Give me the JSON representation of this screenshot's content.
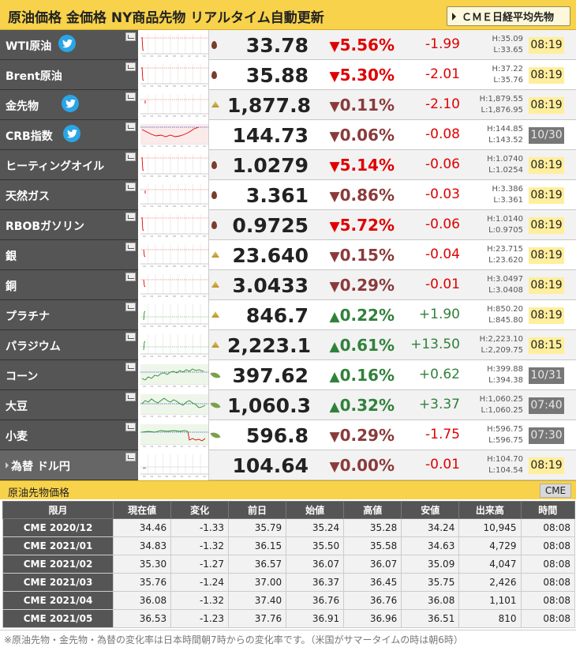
{
  "header": {
    "title": "原油価格 金価格 NY商品先物 リアルタイム自動更新",
    "cme_button": "ＣＭＥ日経平均先物"
  },
  "rows": [
    {
      "name": "WTI原油",
      "twitter": true,
      "icon": "oil",
      "price": "33.78",
      "pct": "5.56%",
      "dir": "down-red",
      "change": "-1.99",
      "high": "H:35.09",
      "low": "L:33.65",
      "time": "08:19",
      "time_style": "yellow",
      "spark": "flat-drop"
    },
    {
      "name": "Brent原油",
      "twitter": false,
      "icon": "oil",
      "price": "35.88",
      "pct": "5.30%",
      "dir": "down-red",
      "change": "-2.01",
      "high": "H:37.22",
      "low": "L:35.76",
      "time": "08:19",
      "time_style": "yellow",
      "spark": "flat-drop"
    },
    {
      "name": "金先物",
      "twitter": true,
      "icon": "gold",
      "price": "1,877.8",
      "pct": "0.11%",
      "dir": "down-brown",
      "change": "-2.10",
      "high": "H:1,879.55",
      "low": "L:1,876.95",
      "time": "08:19",
      "time_style": "yellow",
      "spark": "flat"
    },
    {
      "name": "CRB指数",
      "twitter": true,
      "icon": "none",
      "price": "144.73",
      "pct": "0.06%",
      "dir": "down-brown",
      "change": "-0.08",
      "high": "H:144.85",
      "low": "L:143.52",
      "time": "10/30",
      "time_style": "gray",
      "spark": "crb"
    },
    {
      "name": "ヒーティングオイル",
      "twitter": false,
      "icon": "oil",
      "price": "1.0279",
      "pct": "5.14%",
      "dir": "down-red",
      "change": "-0.06",
      "high": "H:1.0740",
      "low": "L:1.0254",
      "time": "08:19",
      "time_style": "yellow",
      "spark": "flat-drop"
    },
    {
      "name": "天然ガス",
      "twitter": false,
      "icon": "oil",
      "price": "3.361",
      "pct": "0.86%",
      "dir": "down-brown",
      "change": "-0.03",
      "high": "H:3.386",
      "low": "L:3.361",
      "time": "08:19",
      "time_style": "yellow",
      "spark": "flat"
    },
    {
      "name": "RBOBガソリン",
      "twitter": false,
      "icon": "oil",
      "price": "0.9725",
      "pct": "5.72%",
      "dir": "down-red",
      "change": "-0.06",
      "high": "H:1.0140",
      "low": "L:0.9705",
      "time": "08:19",
      "time_style": "yellow",
      "spark": "flat-drop"
    },
    {
      "name": "銀",
      "twitter": false,
      "icon": "gold",
      "price": "23.640",
      "pct": "0.15%",
      "dir": "down-brown",
      "change": "-0.04",
      "high": "H:23.715",
      "low": "L:23.620",
      "time": "08:19",
      "time_style": "yellow",
      "spark": "small-drop"
    },
    {
      "name": "銅",
      "twitter": false,
      "icon": "gold",
      "price": "3.0433",
      "pct": "0.29%",
      "dir": "down-brown",
      "change": "-0.01",
      "high": "H:3.0497",
      "low": "L:3.0408",
      "time": "08:19",
      "time_style": "yellow",
      "spark": "small-drop"
    },
    {
      "name": "プラチナ",
      "twitter": false,
      "icon": "gold",
      "price": "846.7",
      "pct": "0.22%",
      "dir": "up",
      "change": "+1.90",
      "high": "H:850.20",
      "low": "L:845.80",
      "time": "08:19",
      "time_style": "yellow",
      "spark": "small-up"
    },
    {
      "name": "パラジウム",
      "twitter": false,
      "icon": "gold",
      "price": "2,223.1",
      "pct": "0.61%",
      "dir": "up",
      "change": "+13.50",
      "high": "H:2,223.10",
      "low": "L:2,209.75",
      "time": "08:15",
      "time_style": "yellow",
      "spark": "small-up"
    },
    {
      "name": "コーン",
      "twitter": false,
      "icon": "leaf",
      "price": "397.62",
      "pct": "0.16%",
      "dir": "up",
      "change": "+0.62",
      "high": "H:399.88",
      "low": "L:394.38",
      "time": "10/31",
      "time_style": "gray",
      "spark": "wave-up"
    },
    {
      "name": "大豆",
      "twitter": false,
      "icon": "leaf",
      "price": "1,060.3",
      "pct": "0.32%",
      "dir": "up",
      "change": "+3.37",
      "high": "H:1,060.25",
      "low": "L:1,060.25",
      "time": "07:40",
      "time_style": "gray",
      "spark": "wave"
    },
    {
      "name": "小麦",
      "twitter": false,
      "icon": "leaf",
      "price": "596.8",
      "pct": "0.29%",
      "dir": "down-brown",
      "change": "-1.75",
      "high": "H:596.75",
      "low": "L:596.75",
      "time": "07:30",
      "time_style": "gray",
      "spark": "wheat"
    },
    {
      "name": "為替 ドル円",
      "twitter": false,
      "icon": "none",
      "price": "104.64",
      "pct": "0.00%",
      "dir": "down-brown",
      "change": "-0.01",
      "high": "H:104.70",
      "low": "L:104.54",
      "time": "08:19",
      "time_style": "yellow",
      "spark": "usd"
    }
  ],
  "section": {
    "title": "原油先物価格",
    "tag": "CME"
  },
  "futures": {
    "headers": [
      "限月",
      "現在値",
      "変化",
      "前日",
      "始値",
      "高値",
      "安値",
      "出来高",
      "時間"
    ],
    "rows": [
      [
        "CME 2020/12",
        "34.46",
        "-1.33",
        "35.79",
        "35.24",
        "35.28",
        "34.24",
        "10,945",
        "08:08"
      ],
      [
        "CME 2021/01",
        "34.83",
        "-1.32",
        "36.15",
        "35.50",
        "35.58",
        "34.63",
        "4,729",
        "08:08"
      ],
      [
        "CME 2021/02",
        "35.30",
        "-1.27",
        "36.57",
        "36.07",
        "36.07",
        "35.09",
        "4,047",
        "08:08"
      ],
      [
        "CME 2021/03",
        "35.76",
        "-1.24",
        "37.00",
        "36.37",
        "36.45",
        "35.75",
        "2,426",
        "08:08"
      ],
      [
        "CME 2021/04",
        "36.08",
        "-1.32",
        "37.40",
        "36.76",
        "36.76",
        "36.08",
        "1,101",
        "08:08"
      ],
      [
        "CME 2021/05",
        "36.53",
        "-1.23",
        "37.76",
        "36.91",
        "36.96",
        "36.51",
        "810",
        "08:08"
      ]
    ]
  },
  "note": "※原油先物・金先物・為替の変化率は日本時間朝7時からの変化率です。（米国がサマータイムの時は朝6時）",
  "colors": {
    "header_bg": "#f7d24a",
    "name_bg": "#555555",
    "down_red": "#e00000",
    "down_brown": "#8a3a3a",
    "up_green": "#31813b",
    "time_yellow": "#ffee9c",
    "time_gray": "#777777"
  }
}
